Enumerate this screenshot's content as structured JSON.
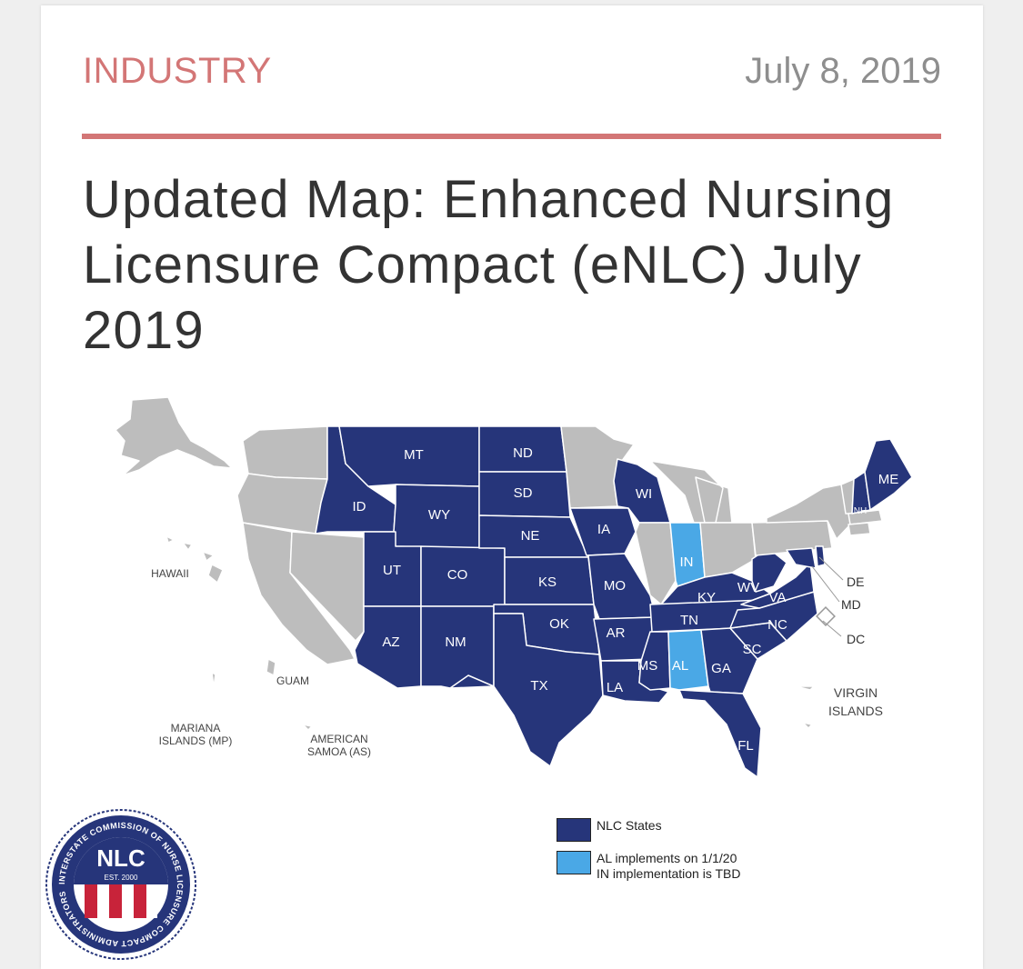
{
  "article": {
    "category": "INDUSTRY",
    "date": "July 8, 2019",
    "title": "Updated Map: Enhanced Nursing Licensure Compact (eNLC) July 2019"
  },
  "map": {
    "colors": {
      "nlc_state": "#26357a",
      "pending_state": "#4aa8e6",
      "non_member": "#bdbdbd",
      "border": "#ffffff"
    },
    "state_labels": {
      "MT": "MT",
      "ND": "ND",
      "SD": "SD",
      "ID": "ID",
      "WY": "WY",
      "NE": "NE",
      "UT": "UT",
      "CO": "CO",
      "KS": "KS",
      "AZ": "AZ",
      "NM": "NM",
      "OK": "OK",
      "TX": "TX",
      "IA": "IA",
      "MO": "MO",
      "AR": "AR",
      "LA": "LA",
      "WI": "WI",
      "IN": "IN",
      "KY": "KY",
      "TN": "TN",
      "MS": "MS",
      "AL": "AL",
      "GA": "GA",
      "FL": "FL",
      "SC": "SC",
      "NC": "NC",
      "VA": "VA",
      "WV": "WV",
      "ME": "ME",
      "NH": "NH",
      "DE": "DE",
      "MD": "MD",
      "DC": "DC"
    },
    "territories": {
      "hawaii": "HAWAII",
      "guam": "GUAM",
      "mariana_line1": "MARIANA",
      "mariana_line2": "ISLANDS (MP)",
      "samoa_line1": "AMERICAN",
      "samoa_line2": "SAMOA (AS)",
      "virgin_line1": "VIRGIN",
      "virgin_line2": "ISLANDS"
    }
  },
  "legend": {
    "nlc_states": "NLC States",
    "pending_line1": "AL implements on 1/1/20",
    "pending_line2": "IN implementation is TBD"
  },
  "logo": {
    "ring_text": "INTERSTATE COMMISSION OF NURSE LICENSURE COMPACT ADMINISTRATORS",
    "abbr": "NLC",
    "est": "EST. 2000"
  }
}
